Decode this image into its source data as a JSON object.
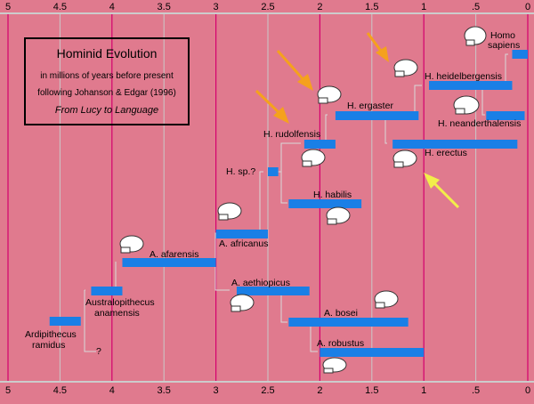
{
  "title_box": {
    "title": "Hominid Evolution",
    "line1": "in millions of years before present",
    "line2": "following Johanson & Edgar (1996)",
    "line3": "From Lucy to Language"
  },
  "axis": {
    "ticks": [
      "5",
      "4.5",
      "4",
      "3.5",
      "3",
      "2.5",
      "2",
      "1.5",
      "1",
      ".5",
      "0"
    ]
  },
  "colors": {
    "background": "#e07a8e",
    "bar": "#1a7fe6",
    "grid_major": "#d4006e",
    "grid_minor": "#c9c9c9",
    "arrow_orange": "#f5a11d",
    "arrow_yellow": "#f2ee4a"
  },
  "chart_data": {
    "type": "timeline",
    "species": [
      {
        "name": "Ardipithecus ramidus",
        "label": "Ardipithecus\nramidus",
        "start": 4.6,
        "end": 4.3
      },
      {
        "name": "Australopithecus anamensis",
        "label": "Australopithecus\nanamensis",
        "start": 4.2,
        "end": 3.9
      },
      {
        "name": "A. afarensis",
        "label": "A. afarensis",
        "start": 3.9,
        "end": 3.0
      },
      {
        "name": "A. africanus",
        "label": "A. africanus",
        "start": 3.0,
        "end": 2.5
      },
      {
        "name": "A. aethiopicus",
        "label": "A. aethiopicus",
        "start": 2.8,
        "end": 2.1
      },
      {
        "name": "A. bosei",
        "label": "A. bosei",
        "start": 2.3,
        "end": 1.15
      },
      {
        "name": "A. robustus",
        "label": "A. robustus",
        "start": 2.0,
        "end": 1.0
      },
      {
        "name": "H. sp.?",
        "label": "H. sp.?",
        "start": 2.5,
        "end": 2.4
      },
      {
        "name": "H. habilis",
        "label": "H. habilis",
        "start": 2.3,
        "end": 1.6
      },
      {
        "name": "H. rudolfensis",
        "label": "H. rudolfensis",
        "start": 2.15,
        "end": 1.85
      },
      {
        "name": "H. ergaster",
        "label": "H. ergaster",
        "start": 1.85,
        "end": 1.05
      },
      {
        "name": "H. erectus",
        "label": "H. erectus",
        "start": 1.3,
        "end": 0.1
      },
      {
        "name": "H. heidelbergensis",
        "label": "H. heidelbergensis",
        "start": 0.95,
        "end": 0.15
      },
      {
        "name": "H. neanderthalensis",
        "label": "H. neanderthalensis",
        "start": 0.4,
        "end": 0.03
      },
      {
        "name": "Homo sapiens",
        "label": "Homo\nsapiens",
        "start": 0.15,
        "end": 0.0
      }
    ],
    "question_mark": "?"
  }
}
